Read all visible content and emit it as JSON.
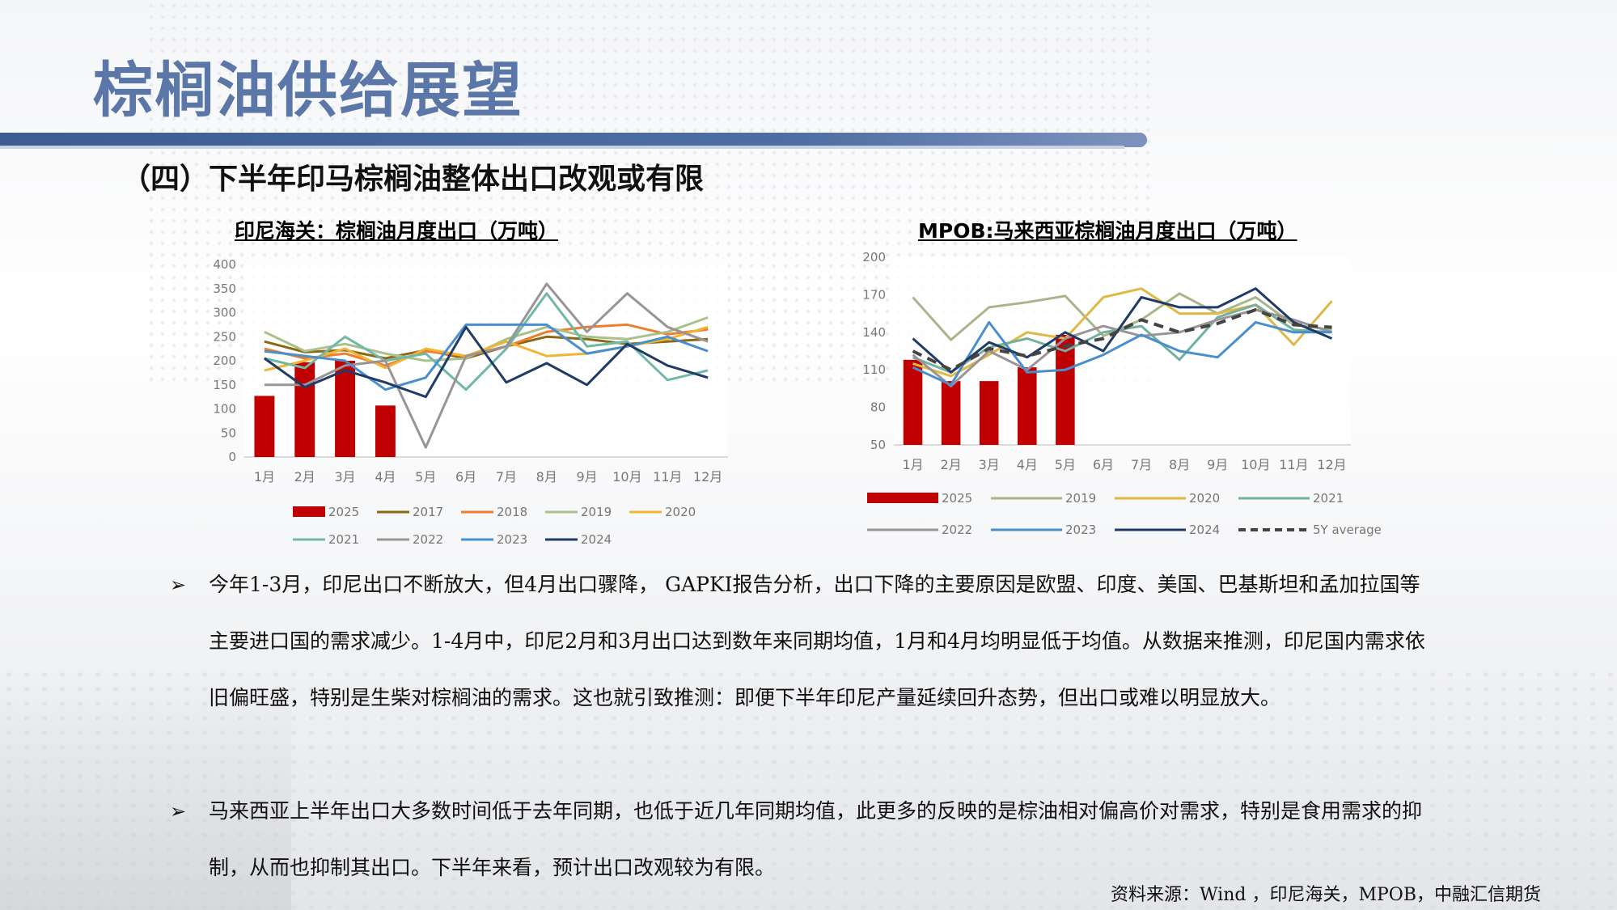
{
  "page": {
    "title": "棕榈油供给展望",
    "subtitle": "（四）下半年印马棕榈油整体出口改观或有限",
    "source": "资料来源：Wind ，印尼海关，MPOB，中融汇信期货",
    "bullets": [
      {
        "mark": "➢",
        "text": "今年1-3月，印尼出口不断放大，但4月出口骤降， GAPKI报告分析，出口下降的主要原因是欧盟、印度、美国、巴基斯坦和孟加拉国等主要进口国的需求减少。1-4月中，印尼2月和3月出口达到数年来同期均值，1月和4月均明显低于均值。从数据来推测，印尼国内需求依旧偏旺盛，特别是生柴对棕榈油的需求。这也就引致推测：即便下半年印尼产量延续回升态势，但出口或难以明显放大。"
      },
      {
        "mark": "➢",
        "text": "马来西亚上半年出口大多数时间低于去年同期，也低于近几年同期均值，此更多的反映的是棕油相对偏高价对需求，特别是食用需求的抑制，从而也抑制其出口。下半年来看，预计出口改观较为有限。"
      }
    ]
  },
  "chart_data": [
    {
      "type": "bar+line",
      "title": "印尼海关：棕榈油月度出口（万吨）",
      "categories": [
        "1月",
        "2月",
        "3月",
        "4月",
        "5月",
        "6月",
        "7月",
        "8月",
        "9月",
        "10月",
        "11月",
        "12月"
      ],
      "ylim": [
        0,
        400
      ],
      "yticks": [
        0,
        50,
        100,
        150,
        200,
        250,
        300,
        350,
        400
      ],
      "bar_series": {
        "name": "2025",
        "color": "#c00000",
        "values": [
          127,
          197,
          200,
          107,
          null,
          null,
          null,
          null,
          null,
          null,
          null,
          null
        ]
      },
      "series": [
        {
          "name": "2017",
          "color": "#8b6914",
          "width": 3,
          "values": [
            240,
            218,
            222,
            205,
            222,
            205,
            230,
            250,
            245,
            235,
            240,
            245
          ]
        },
        {
          "name": "2018",
          "color": "#ed7d31",
          "width": 3,
          "values": [
            225,
            205,
            215,
            190,
            220,
            210,
            230,
            260,
            270,
            275,
            255,
            265
          ]
        },
        {
          "name": "2019",
          "color": "#a9c08a",
          "width": 3,
          "values": [
            260,
            220,
            235,
            215,
            200,
            205,
            245,
            270,
            250,
            245,
            260,
            290
          ]
        },
        {
          "name": "2020",
          "color": "#f1b434",
          "width": 3,
          "values": [
            180,
            200,
            225,
            185,
            225,
            210,
            240,
            210,
            215,
            230,
            245,
            270
          ]
        },
        {
          "name": "2021",
          "color": "#72b8a6",
          "width": 3,
          "values": [
            205,
            185,
            250,
            200,
            215,
            140,
            225,
            340,
            230,
            240,
            160,
            180
          ]
        },
        {
          "name": "2022",
          "color": "#9a9496",
          "width": 3,
          "values": [
            150,
            150,
            190,
            200,
            20,
            210,
            230,
            360,
            260,
            340,
            270,
            240
          ]
        },
        {
          "name": "2023",
          "color": "#4a8fcd",
          "width": 3,
          "values": [
            220,
            210,
            200,
            140,
            165,
            275,
            275,
            275,
            215,
            230,
            250,
            220
          ]
        },
        {
          "name": "2024",
          "color": "#1f3b66",
          "width": 3,
          "values": [
            205,
            145,
            180,
            155,
            125,
            270,
            155,
            195,
            150,
            235,
            190,
            165
          ]
        }
      ],
      "legend": "bottom"
    },
    {
      "type": "bar+line",
      "title": "MPOB:马来西亚棕榈油月度出口（万吨）",
      "categories": [
        "1月",
        "2月",
        "3月",
        "4月",
        "5月",
        "6月",
        "7月",
        "8月",
        "9月",
        "10月",
        "11月",
        "12月"
      ],
      "ylim": [
        50,
        200
      ],
      "yticks": [
        50,
        80,
        110,
        140,
        170,
        200
      ],
      "bar_series": {
        "name": "2025",
        "color": "#c00000",
        "values": [
          118,
          101,
          101,
          112,
          138,
          null,
          null,
          null,
          null,
          null,
          null,
          null
        ]
      },
      "series": [
        {
          "name": "2019",
          "color": "#a9b58a",
          "width": 3,
          "dash": "",
          "values": [
            168,
            134,
            160,
            164,
            169,
            137,
            150,
            171,
            155,
            168,
            146,
            142
          ]
        },
        {
          "name": "2020",
          "color": "#e0b845",
          "width": 3,
          "dash": "",
          "values": [
            115,
            105,
            122,
            140,
            135,
            168,
            175,
            155,
            155,
            162,
            130,
            165
          ]
        },
        {
          "name": "2021",
          "color": "#72b0a0",
          "width": 3,
          "dash": "",
          "values": [
            120,
            108,
            128,
            135,
            125,
            140,
            145,
            118,
            152,
            162,
            142,
            140
          ]
        },
        {
          "name": "2022",
          "color": "#9a9496",
          "width": 3,
          "dash": "",
          "values": [
            122,
            97,
            125,
            110,
            135,
            145,
            137,
            140,
            150,
            158,
            150,
            140
          ]
        },
        {
          "name": "2023",
          "color": "#4a8fcd",
          "width": 3,
          "dash": "",
          "values": [
            112,
            98,
            148,
            108,
            110,
            122,
            138,
            125,
            120,
            148,
            140,
            140
          ]
        },
        {
          "name": "2024",
          "color": "#1f3b66",
          "width": 3,
          "dash": "",
          "values": [
            135,
            108,
            132,
            120,
            140,
            125,
            168,
            160,
            160,
            175,
            148,
            135
          ]
        },
        {
          "name": "5Y average",
          "color": "#444444",
          "width": 4,
          "dash": "12 8",
          "values": [
            125,
            110,
            127,
            121,
            129,
            135,
            150,
            140,
            147,
            158,
            146,
            144
          ]
        }
      ],
      "legend": "bottom"
    }
  ]
}
